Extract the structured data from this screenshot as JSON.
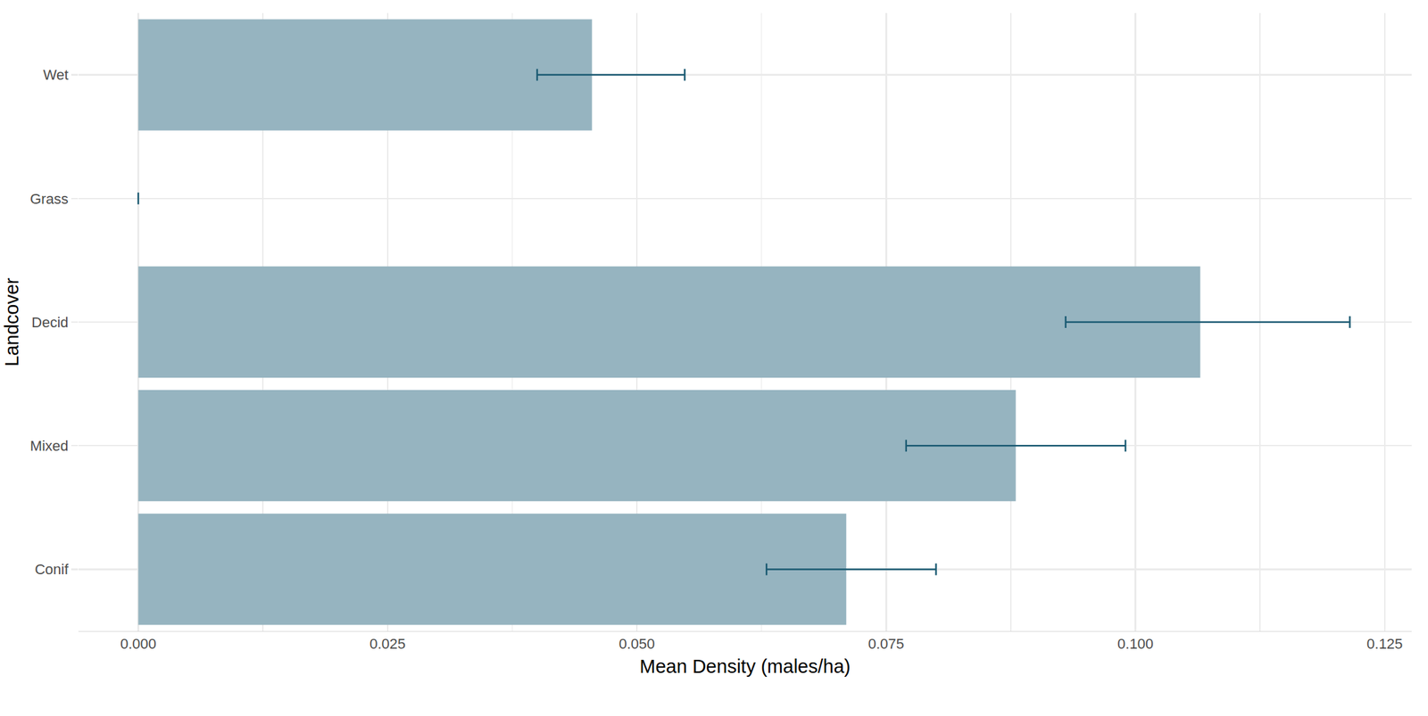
{
  "chart_data": {
    "type": "bar",
    "orientation": "horizontal",
    "x_label": "Mean Density (males/ha)",
    "y_label": "Landcover",
    "categories": [
      "Conif",
      "Mixed",
      "Decid",
      "Grass",
      "Wet"
    ],
    "values": [
      0.071,
      0.088,
      0.1065,
      0,
      0.0455
    ],
    "error_minus": [
      0.008,
      0.011,
      0.0135,
      0,
      0.0055
    ],
    "error_plus": [
      0.009,
      0.011,
      0.015,
      0,
      0.0093
    ],
    "color": "#96b4c0",
    "error_color": "#1a5a72",
    "xlim": [
      -0.006,
      0.1277
    ],
    "xticks": [
      {
        "value": 0,
        "label": "0.000"
      },
      {
        "value": 0.025,
        "label": "0.025"
      },
      {
        "value": 0.05,
        "label": "0.050"
      },
      {
        "value": 0.075,
        "label": "0.075"
      },
      {
        "value": 0.1,
        "label": "0.100"
      },
      {
        "value": 0.125,
        "label": "0.125"
      }
    ],
    "grid": true
  }
}
